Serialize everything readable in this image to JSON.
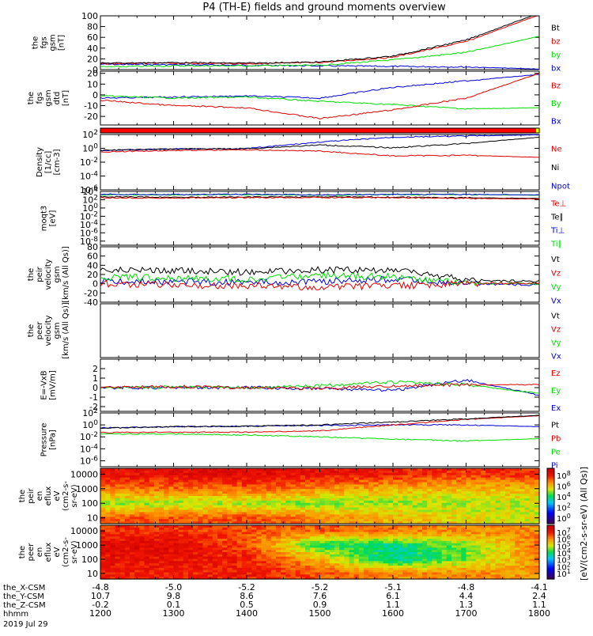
{
  "title": "P4 (TH-E) fields and ground moments overview",
  "colors": {
    "black": "#000000",
    "red": "#e00000",
    "green": "#00dd00",
    "blue": "#0000dd",
    "status_red": "#ff0000",
    "status_yellow": "#ffff00"
  },
  "footer": {
    "row_labels": [
      "the_X-CSM",
      "the_Y-CSM",
      "the_Z-CSM",
      "hhmm",
      "2019 Jul 29"
    ],
    "xcsm": [
      "-4.8",
      "-5.0",
      "-5.2",
      "-5.2",
      "-5.1",
      "-4.8",
      "-4.1"
    ],
    "ycsm": [
      "10.7",
      "9.8",
      "8.6",
      "7.6",
      "6.1",
      "4.4",
      "2.4"
    ],
    "zcsm": [
      "-0.2",
      "0.1",
      "0.5",
      "0.9",
      "1.1",
      "1.3",
      "1.1"
    ],
    "hhmm": [
      "1200",
      "1300",
      "1400",
      "1500",
      "1600",
      "1700",
      "1800"
    ]
  },
  "chart_data": [
    {
      "type": "line",
      "panel": "fgs_gsm",
      "ylabel": [
        "the",
        "fgs",
        "gsm",
        "[nT]"
      ],
      "yticks": [
        "100",
        "80",
        "60",
        "40",
        "20",
        "0"
      ],
      "ylim": [
        0,
        100
      ],
      "x": [
        "1200",
        "1300",
        "1400",
        "1500",
        "1600",
        "1700",
        "1800"
      ],
      "series": [
        {
          "name": "Bt",
          "color": "black",
          "values": [
            12,
            13,
            12,
            14,
            25,
            55,
            105
          ]
        },
        {
          "name": "bz",
          "color": "red",
          "values": [
            11,
            12,
            11,
            13,
            23,
            52,
            102
          ]
        },
        {
          "name": "by",
          "color": "green",
          "values": [
            5,
            7,
            7,
            8,
            18,
            32,
            62
          ]
        },
        {
          "name": "bx",
          "color": "blue",
          "values": [
            10,
            9,
            8,
            7,
            6,
            5,
            1
          ]
        }
      ]
    },
    {
      "type": "line",
      "panel": "fgs_gsm_detrended",
      "ylabel": [
        "the",
        "fgs",
        "gsm",
        "dtd",
        "[nT]"
      ],
      "yticks": [
        "20",
        "10",
        "0",
        "-10",
        "-20"
      ],
      "ylim": [
        -28,
        22
      ],
      "x": [
        "1200",
        "1300",
        "1400",
        "1500",
        "1600",
        "1700",
        "1800"
      ],
      "series": [
        {
          "name": "Bz",
          "color": "red",
          "values": [
            -5,
            -10,
            -12,
            -22,
            -14,
            -3,
            20
          ]
        },
        {
          "name": "By",
          "color": "green",
          "values": [
            -1,
            -3,
            -2,
            -6,
            -9,
            -13,
            -12
          ]
        },
        {
          "name": "Bx",
          "color": "blue",
          "values": [
            -3,
            -2,
            -1,
            -3,
            7,
            13,
            19
          ]
        }
      ]
    },
    {
      "type": "line",
      "panel": "density",
      "ylabel": [
        "Density",
        "[1/cc]",
        "[cm-3]"
      ],
      "yticks": [
        "10^2",
        "10^0",
        "10^-2",
        "10^-4",
        "10^-6"
      ],
      "scale": "log",
      "ylim": [
        1e-06,
        100
      ],
      "x": [
        "1200",
        "1300",
        "1400",
        "1500",
        "1600",
        "1700",
        "1800"
      ],
      "series": [
        {
          "name": "Ne",
          "color": "red",
          "values": [
            0.3,
            0.5,
            0.6,
            0.4,
            0.08,
            0.1,
            0.05
          ]
        },
        {
          "name": "Ni",
          "color": "black",
          "values": [
            0.5,
            0.8,
            0.9,
            3,
            1.2,
            5,
            40
          ]
        },
        {
          "name": "Npot",
          "color": "blue",
          "values": [
            0.5,
            0.8,
            0.9,
            8,
            40,
            60,
            90
          ]
        }
      ]
    },
    {
      "type": "line",
      "panel": "temperature",
      "ylabel": [
        "moqt3",
        "[eV]"
      ],
      "yticks": [
        "10^4",
        "10^2",
        "10^0",
        "10^-2",
        "10^-4",
        "10^-6",
        "10^-8"
      ],
      "scale": "log",
      "ylim": [
        1e-09,
        10000
      ],
      "x": [
        "1200",
        "1300",
        "1400",
        "1500",
        "1600",
        "1700",
        "1800"
      ],
      "series": [
        {
          "name": "Te⊥",
          "color": "red",
          "values": [
            300,
            250,
            300,
            350,
            300,
            200,
            150
          ]
        },
        {
          "name": "Te∥",
          "color": "black",
          "values": [
            500,
            400,
            450,
            500,
            400,
            300,
            200
          ]
        },
        {
          "name": "Ti⊥",
          "color": "blue",
          "values": [
            2000,
            1800,
            2000,
            1500,
            2000,
            2000,
            1500
          ]
        },
        {
          "name": "Ti∥",
          "color": "green",
          "values": [
            1500,
            1500,
            1700,
            1200,
            1700,
            1800,
            1200
          ]
        }
      ]
    },
    {
      "type": "line",
      "panel": "peir_velocity",
      "ylabel": [
        "the",
        "peir",
        "velocity",
        "gsm",
        "[km/s (All Qs)]"
      ],
      "yticks": [
        "80",
        "60",
        "40",
        "20",
        "0",
        "-20",
        "-40"
      ],
      "ylim": [
        -40,
        80
      ],
      "x": [
        "1200",
        "1300",
        "1400",
        "1500",
        "1600",
        "1700",
        "1800"
      ],
      "series": [
        {
          "name": "Vt",
          "color": "black",
          "values": [
            30,
            28,
            25,
            30,
            30,
            8,
            5
          ]
        },
        {
          "name": "Vz",
          "color": "red",
          "values": [
            0,
            -3,
            -5,
            -8,
            -5,
            0,
            2
          ]
        },
        {
          "name": "Vy",
          "color": "green",
          "values": [
            15,
            12,
            10,
            18,
            15,
            2,
            0
          ]
        },
        {
          "name": "Vx",
          "color": "blue",
          "values": [
            5,
            5,
            3,
            5,
            10,
            0,
            -3
          ]
        }
      ]
    },
    {
      "type": "line",
      "panel": "peer_velocity",
      "ylabel": [
        "the",
        "peer",
        "velocity",
        "gsm",
        "[km/s (All Qs)]"
      ],
      "yticks": [],
      "x": [],
      "series": [
        {
          "name": "Vt",
          "color": "black",
          "values": []
        },
        {
          "name": "Vz",
          "color": "red",
          "values": []
        },
        {
          "name": "Vy",
          "color": "green",
          "values": []
        },
        {
          "name": "Vx",
          "color": "blue",
          "values": []
        }
      ]
    },
    {
      "type": "line",
      "panel": "efield",
      "ylabel": [
        "E=-VxB",
        "[mV/m]"
      ],
      "yticks": [
        "2",
        "1",
        "0",
        "-1",
        "-2"
      ],
      "ylim": [
        -2.5,
        3
      ],
      "x": [
        "1200",
        "1300",
        "1400",
        "1500",
        "1600",
        "1700",
        "1800"
      ],
      "series": [
        {
          "name": "Ez",
          "color": "red",
          "values": [
            0,
            0.1,
            0,
            -0.1,
            0.2,
            0.3,
            0.3
          ]
        },
        {
          "name": "Ey",
          "color": "green",
          "values": [
            0,
            0.05,
            0,
            0.2,
            0.6,
            0.3,
            -0.6
          ]
        },
        {
          "name": "Ex",
          "color": "blue",
          "values": [
            0,
            0,
            0,
            -0.1,
            -0.3,
            0.8,
            -0.8
          ]
        }
      ]
    },
    {
      "type": "line",
      "panel": "pressure",
      "ylabel": [
        "Pressure",
        "[nPa]"
      ],
      "yticks": [
        "10^2",
        "10^0",
        "10^-2",
        "10^-4",
        "10^-6"
      ],
      "scale": "log",
      "ylim": [
        1e-07,
        100
      ],
      "x": [
        "1200",
        "1300",
        "1400",
        "1500",
        "1600",
        "1700",
        "1800"
      ],
      "series": [
        {
          "name": "Pt",
          "color": "black",
          "values": [
            0.3,
            0.5,
            0.6,
            1,
            3,
            10,
            40
          ]
        },
        {
          "name": "Pb",
          "color": "red",
          "values": [
            0.05,
            0.06,
            0.06,
            0.1,
            1,
            8,
            35
          ]
        },
        {
          "name": "Pe",
          "color": "green",
          "values": [
            0.03,
            0.03,
            0.02,
            0.01,
            0.004,
            0.002,
            0.005
          ]
        },
        {
          "name": "Pi",
          "color": "blue",
          "values": [
            0.3,
            0.5,
            0.6,
            0.8,
            1,
            1,
            0.5
          ]
        }
      ]
    },
    {
      "type": "heatmap",
      "panel": "peir_en_eflux",
      "ylabel": [
        "the",
        "peir",
        "en",
        "eflux",
        "eV",
        "(cm2-s-",
        "sr-eV)"
      ],
      "yticks": [
        "10000",
        "1000",
        "100",
        "10"
      ],
      "colorbar_ticks": [
        "10^8",
        "10^6",
        "10^4",
        "10^2",
        "10^0"
      ],
      "colorbar_label": "[eV/(cm2-s-sr-eV) (All Qs)]",
      "x": [
        "1200",
        "1300",
        "1400",
        "1500",
        "1600",
        "1700",
        "1800"
      ],
      "y_energy": [
        "10",
        "100",
        "1000",
        "10000"
      ],
      "values": [
        [
          6.5,
          6.5,
          6.5,
          6.0,
          5.5,
          5.2,
          5.0
        ],
        [
          4.5,
          4.7,
          4.8,
          4.5,
          4.6,
          4.8,
          4.8
        ],
        [
          6.2,
          6.3,
          6.4,
          6.0,
          5.6,
          5.5,
          5.5
        ],
        [
          7.2,
          7.3,
          7.4,
          7.2,
          7.0,
          6.8,
          6.8
        ]
      ]
    },
    {
      "type": "heatmap",
      "panel": "peer_en_eflux",
      "ylabel": [
        "the",
        "peer",
        "en",
        "eflux",
        "eV",
        "(cm2-s-",
        "sr-eV)"
      ],
      "yticks": [
        "10000",
        "1000",
        "100",
        "10"
      ],
      "colorbar_ticks": [
        "10^7",
        "10^6",
        "10^5",
        "10^4",
        "10^3",
        "10^2",
        "10^1"
      ],
      "colorbar_label": "[eV/(cm2-s-sr-eV) (All Qs)]",
      "x": [
        "1200",
        "1300",
        "1400",
        "1500",
        "1600",
        "1700",
        "1800"
      ],
      "y_energy": [
        "10",
        "100",
        "1000",
        "10000"
      ],
      "values": [
        [
          7.0,
          7.0,
          7.0,
          6.5,
          6.0,
          6.0,
          5.8
        ],
        [
          7.2,
          7.2,
          7.0,
          5.5,
          3.5,
          4.5,
          6.0
        ],
        [
          7.4,
          7.4,
          6.5,
          4.0,
          3.8,
          4.5,
          6.2
        ],
        [
          6.8,
          6.8,
          6.5,
          6.4,
          6.2,
          6.0,
          6.0
        ]
      ]
    }
  ]
}
